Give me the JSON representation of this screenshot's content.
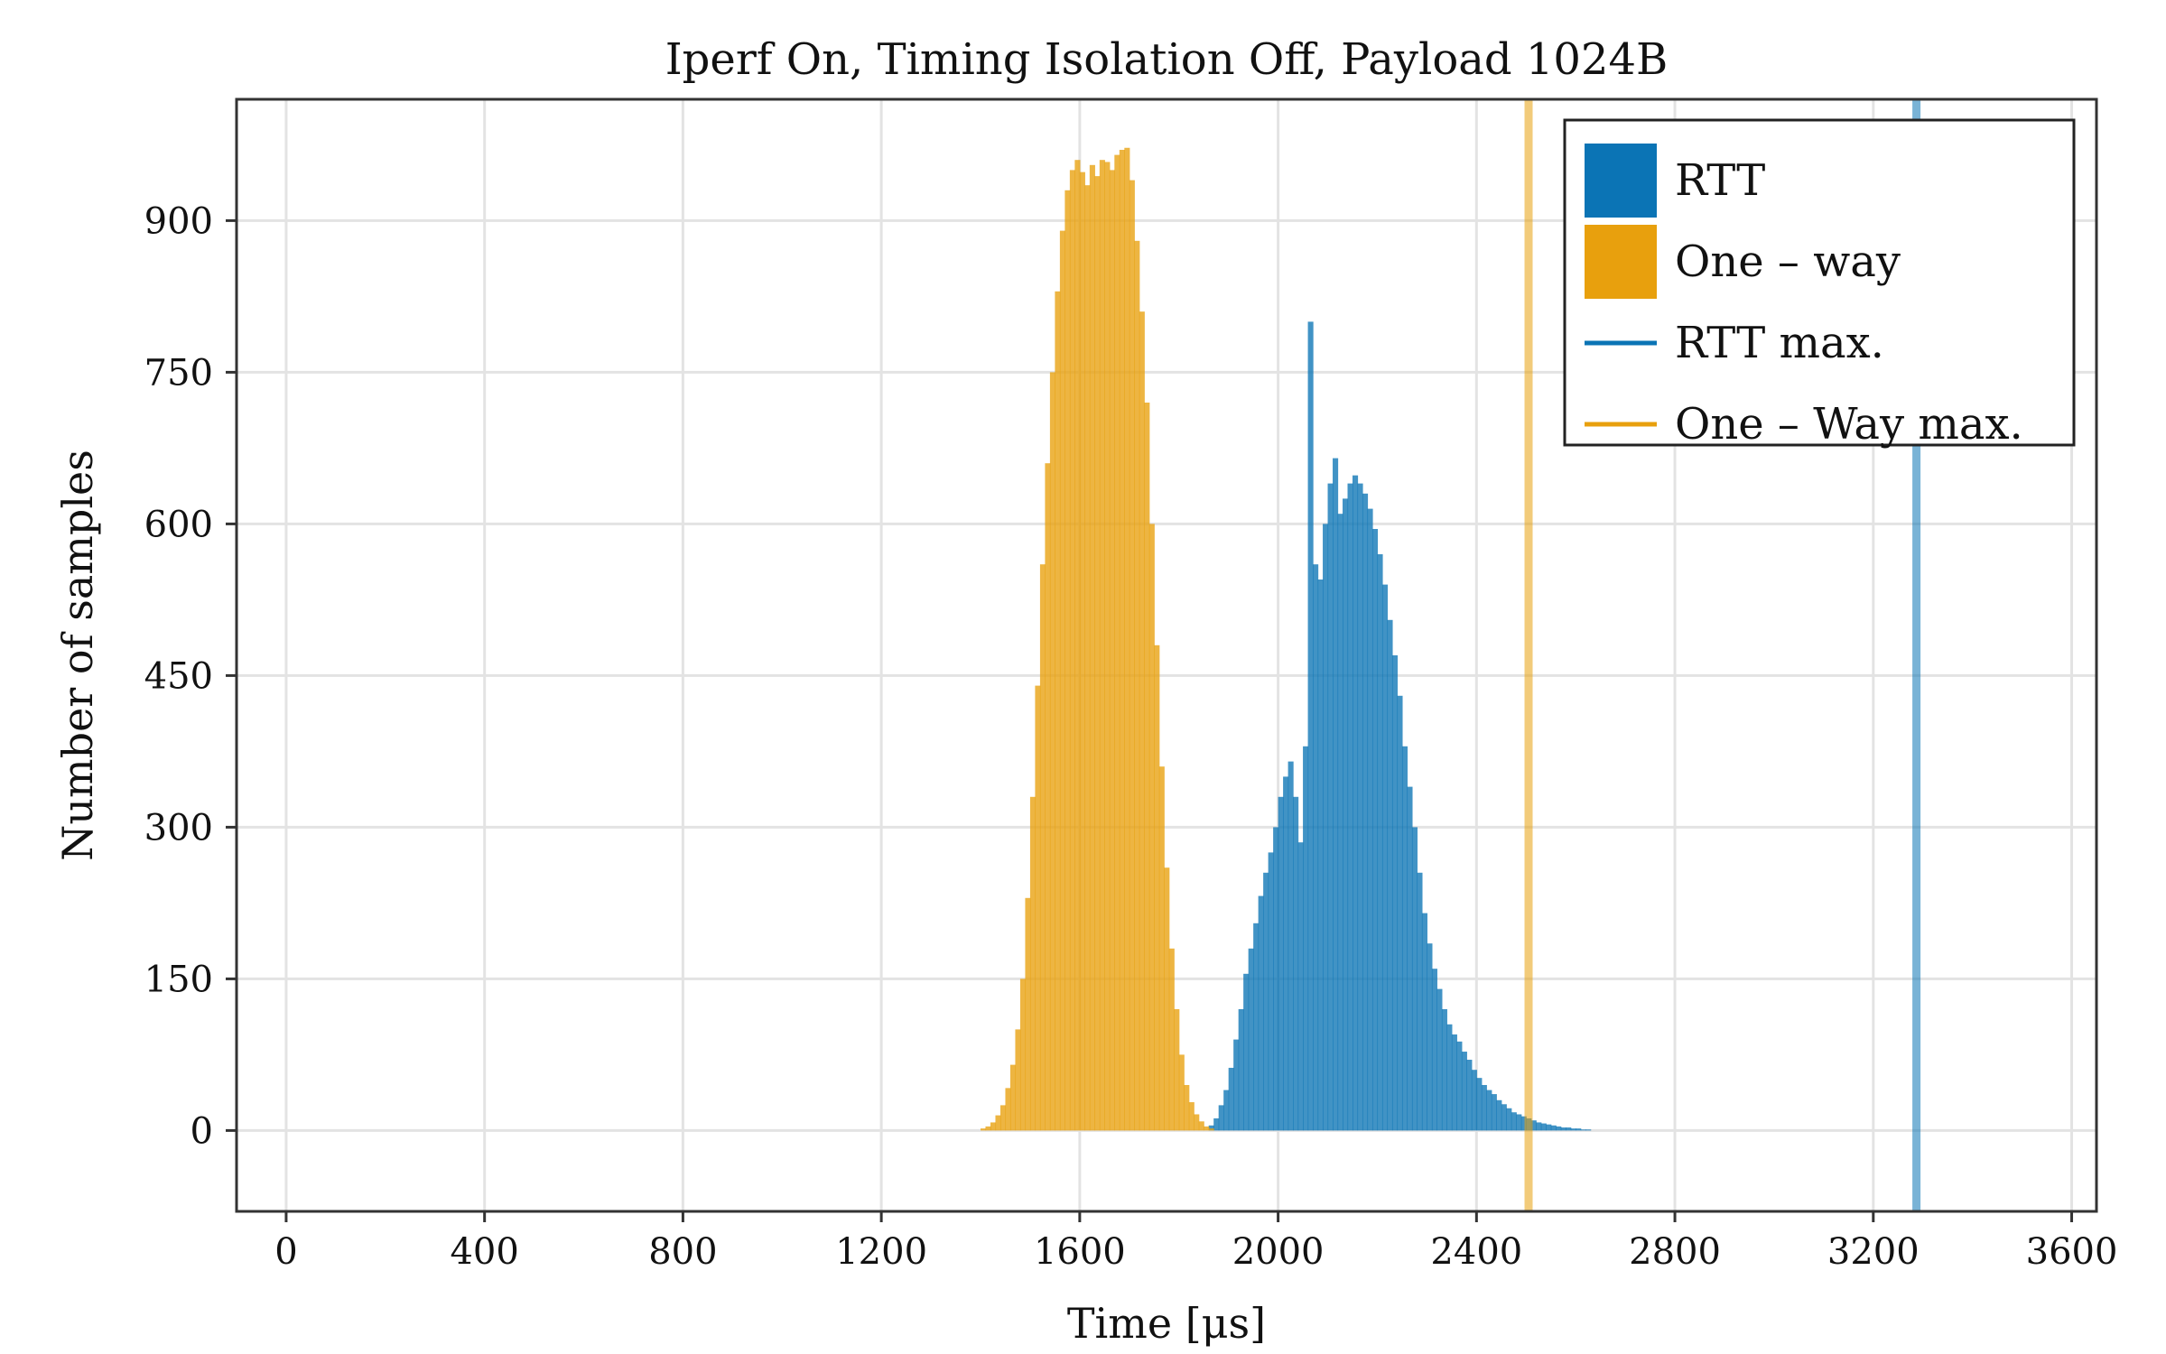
{
  "colors": {
    "rtt": "#0b74b5",
    "one_way": "#e8a00d",
    "grid": "#e3e3e3",
    "axis": "#333333"
  },
  "chart_data": {
    "type": "bar",
    "title": "Iperf On, Timing Isolation Off, Payload 1024B",
    "xlabel": "Time [μs]",
    "ylabel": "Number of samples",
    "xlim": [
      -100,
      3650
    ],
    "ylim": [
      -80,
      1020
    ],
    "xticks": [
      0,
      400,
      800,
      1200,
      1600,
      2000,
      2400,
      2800,
      3200,
      3600
    ],
    "yticks": [
      0,
      150,
      300,
      450,
      600,
      750,
      900
    ],
    "grid": true,
    "legend_position": "top-right",
    "legend": [
      "RTT",
      "One – way",
      "RTT max.",
      "One – Way max."
    ],
    "series": [
      {
        "name": "RTT",
        "kind": "histogram",
        "color": "#0b74b5",
        "bin_width": 10,
        "x": [
          1860,
          1870,
          1880,
          1890,
          1900,
          1910,
          1920,
          1930,
          1940,
          1950,
          1960,
          1970,
          1980,
          1990,
          2000,
          2010,
          2020,
          2030,
          2040,
          2050,
          2060,
          2070,
          2080,
          2090,
          2100,
          2110,
          2120,
          2130,
          2140,
          2150,
          2160,
          2170,
          2180,
          2190,
          2200,
          2210,
          2220,
          2230,
          2240,
          2250,
          2260,
          2270,
          2280,
          2290,
          2300,
          2310,
          2320,
          2330,
          2340,
          2350,
          2360,
          2370,
          2380,
          2390,
          2400,
          2410,
          2420,
          2430,
          2440,
          2450,
          2460,
          2470,
          2480,
          2490,
          2500,
          2510,
          2520,
          2530,
          2540,
          2550,
          2560,
          2570,
          2580,
          2590,
          2600,
          2610,
          2620
        ],
        "values": [
          5,
          12,
          25,
          40,
          62,
          90,
          120,
          155,
          180,
          205,
          232,
          255,
          275,
          300,
          330,
          350,
          365,
          330,
          285,
          380,
          800,
          560,
          545,
          600,
          640,
          665,
          610,
          625,
          640,
          648,
          640,
          630,
          615,
          595,
          570,
          540,
          505,
          470,
          430,
          380,
          340,
          300,
          255,
          215,
          185,
          160,
          140,
          120,
          105,
          95,
          88,
          78,
          70,
          60,
          52,
          45,
          40,
          36,
          30,
          26,
          22,
          18,
          16,
          14,
          12,
          10,
          8,
          7,
          6,
          5,
          4,
          3,
          3,
          2,
          2,
          1,
          1
        ]
      },
      {
        "name": "One – way",
        "kind": "histogram",
        "color": "#e8a00d",
        "bin_width": 10,
        "x": [
          1400,
          1410,
          1420,
          1430,
          1440,
          1450,
          1460,
          1470,
          1480,
          1490,
          1500,
          1510,
          1520,
          1530,
          1540,
          1550,
          1560,
          1570,
          1580,
          1590,
          1600,
          1610,
          1620,
          1630,
          1640,
          1650,
          1660,
          1670,
          1680,
          1690,
          1700,
          1710,
          1720,
          1730,
          1740,
          1750,
          1760,
          1770,
          1780,
          1790,
          1800,
          1810,
          1820,
          1830,
          1840,
          1850,
          1860
        ],
        "values": [
          2,
          4,
          8,
          15,
          25,
          42,
          65,
          100,
          150,
          230,
          330,
          440,
          560,
          660,
          750,
          830,
          890,
          930,
          950,
          960,
          948,
          935,
          955,
          944,
          960,
          958,
          950,
          965,
          970,
          972,
          940,
          880,
          810,
          720,
          600,
          480,
          360,
          260,
          180,
          120,
          75,
          45,
          28,
          16,
          9,
          4,
          2
        ]
      },
      {
        "name": "RTT max.",
        "kind": "vline",
        "color": "#0b74b5",
        "x": 3287
      },
      {
        "name": "One – Way max.",
        "kind": "vline",
        "color": "#e8a00d",
        "x": 2505
      }
    ]
  }
}
